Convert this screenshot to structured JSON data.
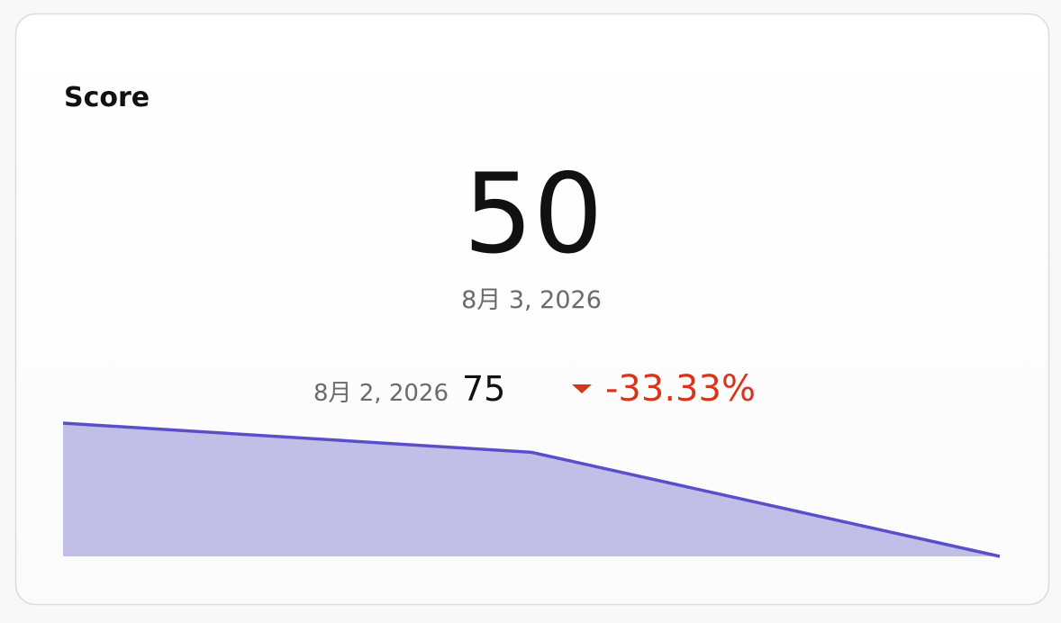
{
  "card": {
    "title": "Score",
    "value": 50,
    "date": "8月 3, 2026",
    "comparison": {
      "date": "8月 2, 2026",
      "value": 75,
      "change": {
        "value": -33.33,
        "label": "-33.33%"
      }
    }
  },
  "sparkline": {
    "type": "area",
    "values": [
      82,
      75,
      50
    ],
    "ylim": [
      50,
      82
    ],
    "color": "#5b4fc9",
    "fill": "#c1bfe7"
  }
}
